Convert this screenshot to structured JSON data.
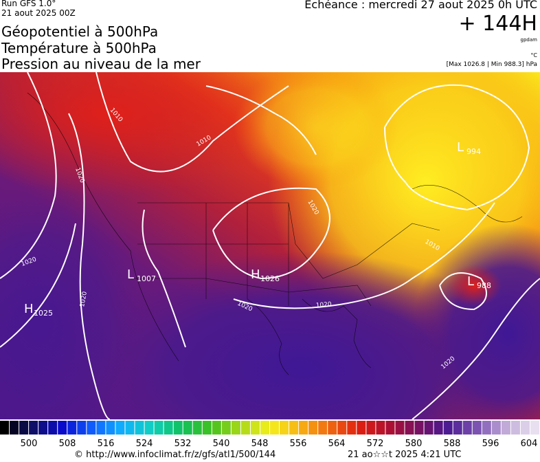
{
  "header": {
    "run": "Run GFS 1.0°",
    "run_date": "21 aout 2025 00Z",
    "titles": [
      "Géopotentiel à 500hPa",
      "Température à 500hPa",
      "Pression au niveau de la mer"
    ],
    "echeance": "Echéance : mercredi 27 aout 2025 0h UTC",
    "lead": "+ 144H",
    "unit_geo": "gpdam",
    "unit_temp": "°C",
    "pressure_range": "[Max 1026.8 | Min 988.3] hPa"
  },
  "map": {
    "centers": [
      {
        "letter": "H",
        "value": "1025"
      },
      {
        "letter": "L",
        "value": "1007"
      },
      {
        "letter": "H",
        "value": "1026"
      },
      {
        "letter": "L",
        "value": "994"
      },
      {
        "letter": "L",
        "value": "988"
      }
    ],
    "isobar_labels": [
      "1010",
      "1010",
      "1020",
      "1020",
      "1020",
      "1020",
      "1020",
      "1020",
      "1020",
      "1010"
    ]
  },
  "colorbar": {
    "ticks": [
      "500",
      "508",
      "516",
      "524",
      "532",
      "540",
      "548",
      "556",
      "564",
      "572",
      "580",
      "588",
      "596",
      "604"
    ]
  },
  "footer": {
    "source": "© http://www.infoclimat.fr/z/gfs/atl1/500/144",
    "generated": "21 ao☆☆t 2025  4:21 UTC"
  }
}
